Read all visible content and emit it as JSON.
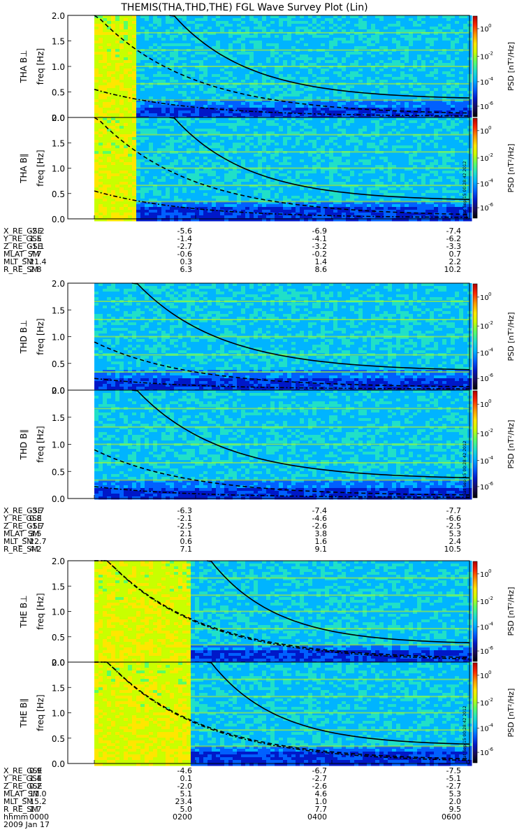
{
  "title": "THEMIS(THA,THD,THE) FGL Wave Survey Plot (Lin)",
  "stamp": "Sat Sep 15 00:28:42 2012",
  "colors": {
    "ct": [
      "#000000",
      "#1a0a5a",
      "#0018c8",
      "#0060ff",
      "#00b4ff",
      "#20e0c8",
      "#5aff64",
      "#c8ff00",
      "#ffe600",
      "#ff9600",
      "#ff2800",
      "#b40000"
    ]
  },
  "chart_data": {
    "type": "heatmap",
    "ylabel": "freq [Hz]",
    "yticks": [
      "2.0",
      "1.5",
      "1.0",
      "0.5",
      "0.0"
    ],
    "ylim": [
      0,
      2.0
    ],
    "colorbar": {
      "label": "PSD [nT²/Hz]",
      "ticks": [
        [
          "10",
          "0"
        ],
        [
          "10",
          "-2"
        ],
        [
          "10",
          "-4"
        ],
        [
          "10",
          "-6"
        ]
      ]
    },
    "panels": [
      {
        "name": "THA B⊥",
        "ylabel_prefix": "THA B⊥",
        "probe": "THA",
        "data_start": 0.11,
        "warm_end": 0.11,
        "lines": {
          "solid_start": [
            0.2,
            2.1
          ],
          "dash_start": [
            0.0,
            2.05
          ],
          "dashdot_start": [
            0.0,
            0.55
          ]
        }
      },
      {
        "name": "THA B∥",
        "ylabel_prefix": "THA B∥",
        "probe": "THA",
        "data_start": 0.11,
        "warm_end": 0.11,
        "lines": {
          "solid_start": [
            0.2,
            2.1
          ],
          "dash_start": [
            0.0,
            2.05
          ],
          "dashdot_start": [
            0.0,
            0.55
          ]
        }
      },
      {
        "name": "THD B⊥",
        "ylabel_prefix": "THD B⊥",
        "probe": "THD",
        "data_start": 0.0,
        "warm_end": 0.0,
        "lines": {
          "solid_start": [
            0.1,
            2.1
          ],
          "dash_start": [
            0.0,
            0.9
          ],
          "dashdot_start": [
            0.0,
            0.22
          ]
        }
      },
      {
        "name": "THD B∥",
        "ylabel_prefix": "THD B∥",
        "probe": "THD",
        "data_start": 0.0,
        "warm_end": 0.0,
        "lines": {
          "solid_start": [
            0.1,
            2.1
          ],
          "dash_start": [
            0.0,
            0.9
          ],
          "dashdot_start": [
            0.0,
            0.22
          ]
        }
      },
      {
        "name": "THE B⊥",
        "ylabel_prefix": "THE B⊥",
        "probe": "THE",
        "data_start": 0.0,
        "warm_end": 0.25,
        "lines": {
          "solid_start": [
            0.3,
            2.1
          ],
          "dash_start": [
            0.0,
            2.3
          ],
          "dashdot_start": [
            0.0,
            2.3
          ]
        }
      },
      {
        "name": "THE B∥",
        "ylabel_prefix": "THE B∥",
        "probe": "THE",
        "data_start": 0.0,
        "warm_end": 0.25,
        "lines": {
          "solid_start": [
            0.3,
            2.1
          ],
          "dash_start": [
            0.0,
            2.3
          ],
          "dashdot_start": [
            0.0,
            2.3
          ]
        }
      }
    ],
    "x_time": [
      "0000",
      "0200",
      "0400",
      "0600"
    ],
    "date": "2009 Jan 17",
    "time_label": "hhmm"
  },
  "ephem": [
    {
      "rows": [
        [
          "X_RE_GSE",
          "-2.2",
          "-5.6",
          "-6.9",
          "-7.4"
        ],
        [
          "Y_RE_GSE",
          "1.5",
          "-1.4",
          "-4.1",
          "-6.2"
        ],
        [
          "Z_RE_GSE",
          "-1.1",
          "-2.7",
          "-3.2",
          "-3.3"
        ],
        [
          "MLAT_SM",
          "7.7",
          "-0.6",
          "-0.2",
          "0.7"
        ],
        [
          "MLT_SM",
          "21.4",
          "0.3",
          "1.4",
          "2.2"
        ],
        [
          "R_RE_SM",
          "2.8",
          "6.3",
          "8.6",
          "10.2"
        ]
      ]
    },
    {
      "rows": [
        [
          "X_RE_GSE",
          "-3.7",
          "-6.3",
          "-7.4",
          "-7.7"
        ],
        [
          "Y_RE_GSE",
          "0.8",
          "-2.1",
          "-4.6",
          "-6.6"
        ],
        [
          "Z_RE_GSE",
          "-1.7",
          "-2.5",
          "-2.6",
          "-2.5"
        ],
        [
          "MLAT_SM",
          "3.5",
          "2.1",
          "3.8",
          "5.3"
        ],
        [
          "MLT_SM",
          "22.7",
          "0.6",
          "1.6",
          "2.4"
        ],
        [
          "R_RE_SM",
          "4.2",
          "7.1",
          "9.1",
          "10.5"
        ]
      ]
    },
    {
      "rows": [
        [
          "X_RE_GSE",
          "0.9",
          "-4.6",
          "-6.7",
          "-7.5"
        ],
        [
          "Y_RE_GSE",
          "1.4",
          "0.1",
          "-2.7",
          "-5.1"
        ],
        [
          "Z_RE_GSE",
          "0.2",
          "-2.0",
          "-2.6",
          "-2.7"
        ],
        [
          "MLAT_SM",
          "11.0",
          "5.1",
          "4.6",
          "5.3"
        ],
        [
          "MLT_SM",
          "15.2",
          "23.4",
          "1.0",
          "2.0"
        ],
        [
          "R_RE_SM",
          "1.7",
          "5.0",
          "7.7",
          "9.5"
        ]
      ]
    }
  ]
}
